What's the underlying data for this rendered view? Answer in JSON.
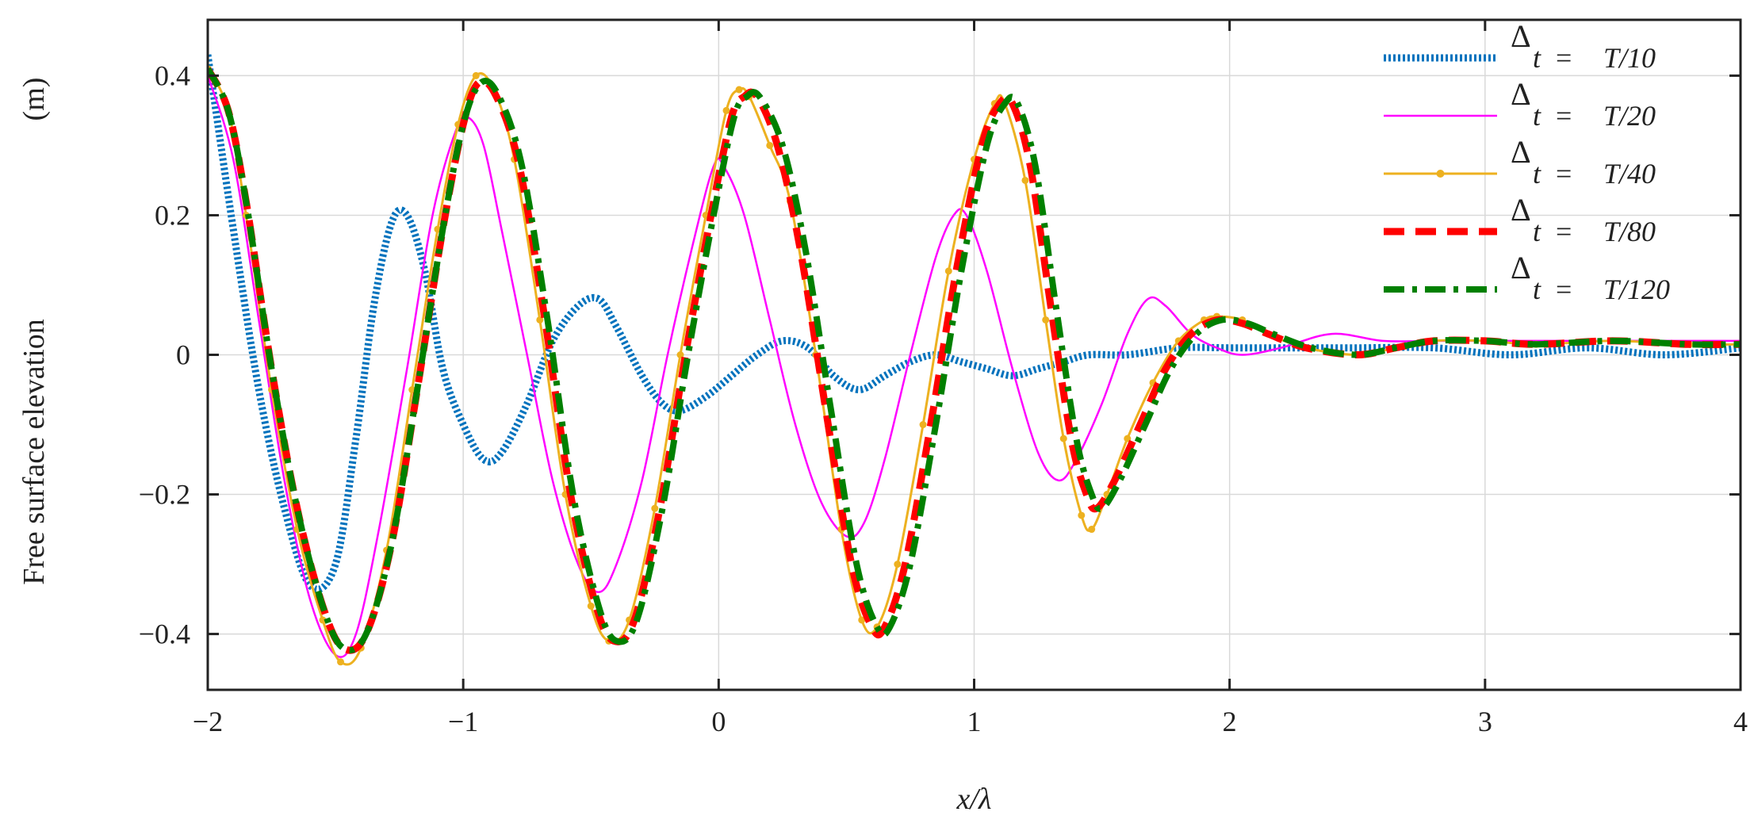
{
  "chart_data": {
    "type": "line",
    "title": "",
    "xlabel": "x/λ",
    "ylabel": "Free surface elevation",
    "ylabel_unit": "(m)",
    "xlim": [
      -2,
      4
    ],
    "ylim": [
      -0.48,
      0.48
    ],
    "x_ticks": [
      -2,
      -1,
      0,
      1,
      2,
      3,
      4
    ],
    "x_tick_labels": [
      "−2",
      "−1",
      "0",
      "1",
      "2",
      "3",
      "4"
    ],
    "y_ticks": [
      -0.4,
      -0.2,
      0,
      0.2,
      0.4
    ],
    "y_tick_labels": [
      "−0.4",
      "−0.2",
      "0",
      "0.2",
      "0.4"
    ],
    "grid": true,
    "legend_position": "top-right",
    "series": [
      {
        "name": "T/10",
        "legend_delta": "Δ",
        "legend_sub": "t",
        "legend_eq": "=",
        "legend_value": "T/10",
        "color": "#0072BD",
        "style": "dotted-thick",
        "points": [
          [
            -2.0,
            0.43
          ],
          [
            -1.9,
            0.18
          ],
          [
            -1.8,
            -0.05
          ],
          [
            -1.7,
            -0.22
          ],
          [
            -1.6,
            -0.33
          ],
          [
            -1.5,
            -0.3
          ],
          [
            -1.42,
            -0.12
          ],
          [
            -1.35,
            0.07
          ],
          [
            -1.28,
            0.19
          ],
          [
            -1.22,
            0.2
          ],
          [
            -1.15,
            0.12
          ],
          [
            -1.08,
            -0.02
          ],
          [
            -1.0,
            -0.1
          ],
          [
            -0.92,
            -0.15
          ],
          [
            -0.85,
            -0.14
          ],
          [
            -0.75,
            -0.07
          ],
          [
            -0.65,
            0.02
          ],
          [
            -0.55,
            0.07
          ],
          [
            -0.47,
            0.08
          ],
          [
            -0.4,
            0.04
          ],
          [
            -0.3,
            -0.03
          ],
          [
            -0.22,
            -0.07
          ],
          [
            -0.15,
            -0.08
          ],
          [
            -0.05,
            -0.06
          ],
          [
            0.05,
            -0.03
          ],
          [
            0.15,
            0.0
          ],
          [
            0.25,
            0.02
          ],
          [
            0.35,
            0.01
          ],
          [
            0.45,
            -0.03
          ],
          [
            0.55,
            -0.05
          ],
          [
            0.65,
            -0.03
          ],
          [
            0.75,
            -0.01
          ],
          [
            0.85,
            0.0
          ],
          [
            0.95,
            -0.01
          ],
          [
            1.05,
            -0.02
          ],
          [
            1.15,
            -0.03
          ],
          [
            1.25,
            -0.02
          ],
          [
            1.35,
            -0.01
          ],
          [
            1.45,
            0.0
          ],
          [
            1.6,
            0.0
          ],
          [
            1.8,
            0.01
          ],
          [
            2.0,
            0.01
          ],
          [
            2.2,
            0.01
          ],
          [
            2.5,
            0.01
          ],
          [
            2.8,
            0.01
          ],
          [
            3.1,
            0.0
          ],
          [
            3.4,
            0.01
          ],
          [
            3.7,
            0.0
          ],
          [
            4.0,
            0.01
          ]
        ]
      },
      {
        "name": "T/20",
        "legend_delta": "Δ",
        "legend_sub": "t",
        "legend_eq": "=",
        "legend_value": "T/20",
        "color": "#FF00FF",
        "style": "solid-thin",
        "points": [
          [
            -2.0,
            0.4
          ],
          [
            -1.9,
            0.28
          ],
          [
            -1.8,
            0.05
          ],
          [
            -1.7,
            -0.18
          ],
          [
            -1.6,
            -0.35
          ],
          [
            -1.5,
            -0.43
          ],
          [
            -1.42,
            -0.4
          ],
          [
            -1.33,
            -0.25
          ],
          [
            -1.22,
            -0.02
          ],
          [
            -1.12,
            0.2
          ],
          [
            -1.03,
            0.32
          ],
          [
            -0.98,
            0.34
          ],
          [
            -0.92,
            0.3
          ],
          [
            -0.85,
            0.18
          ],
          [
            -0.75,
            0.0
          ],
          [
            -0.65,
            -0.18
          ],
          [
            -0.55,
            -0.3
          ],
          [
            -0.47,
            -0.34
          ],
          [
            -0.4,
            -0.3
          ],
          [
            -0.3,
            -0.18
          ],
          [
            -0.2,
            0.0
          ],
          [
            -0.1,
            0.16
          ],
          [
            -0.02,
            0.27
          ],
          [
            0.02,
            0.27
          ],
          [
            0.1,
            0.2
          ],
          [
            0.2,
            0.05
          ],
          [
            0.3,
            -0.1
          ],
          [
            0.4,
            -0.21
          ],
          [
            0.5,
            -0.26
          ],
          [
            0.57,
            -0.24
          ],
          [
            0.65,
            -0.15
          ],
          [
            0.75,
            0.0
          ],
          [
            0.85,
            0.14
          ],
          [
            0.92,
            0.2
          ],
          [
            0.97,
            0.2
          ],
          [
            1.05,
            0.12
          ],
          [
            1.15,
            -0.02
          ],
          [
            1.25,
            -0.14
          ],
          [
            1.33,
            -0.18
          ],
          [
            1.4,
            -0.15
          ],
          [
            1.5,
            -0.07
          ],
          [
            1.6,
            0.03
          ],
          [
            1.68,
            0.08
          ],
          [
            1.75,
            0.07
          ],
          [
            1.85,
            0.03
          ],
          [
            1.95,
            0.01
          ],
          [
            2.05,
            0.0
          ],
          [
            2.2,
            0.01
          ],
          [
            2.4,
            0.03
          ],
          [
            2.6,
            0.02
          ],
          [
            2.8,
            0.02
          ],
          [
            3.0,
            0.02
          ],
          [
            3.3,
            0.02
          ],
          [
            3.6,
            0.02
          ],
          [
            4.0,
            0.02
          ]
        ]
      },
      {
        "name": "T/40",
        "legend_delta": "Δ",
        "legend_sub": "t",
        "legend_eq": "=",
        "legend_value": "T/40",
        "color": "#EDB120",
        "style": "solid-marker",
        "points": [
          [
            -2.0,
            0.41
          ],
          [
            -1.92,
            0.35
          ],
          [
            -1.85,
            0.2
          ],
          [
            -1.75,
            -0.05
          ],
          [
            -1.65,
            -0.25
          ],
          [
            -1.55,
            -0.38
          ],
          [
            -1.48,
            -0.44
          ],
          [
            -1.4,
            -0.42
          ],
          [
            -1.3,
            -0.28
          ],
          [
            -1.2,
            -0.05
          ],
          [
            -1.1,
            0.18
          ],
          [
            -1.02,
            0.33
          ],
          [
            -0.95,
            0.4
          ],
          [
            -0.88,
            0.38
          ],
          [
            -0.8,
            0.28
          ],
          [
            -0.7,
            0.05
          ],
          [
            -0.6,
            -0.2
          ],
          [
            -0.5,
            -0.36
          ],
          [
            -0.43,
            -0.41
          ],
          [
            -0.35,
            -0.38
          ],
          [
            -0.25,
            -0.22
          ],
          [
            -0.15,
            0.0
          ],
          [
            -0.05,
            0.2
          ],
          [
            0.03,
            0.35
          ],
          [
            0.08,
            0.38
          ],
          [
            0.12,
            0.37
          ],
          [
            0.2,
            0.3
          ],
          [
            0.28,
            0.22
          ],
          [
            0.38,
            0.0
          ],
          [
            0.48,
            -0.25
          ],
          [
            0.56,
            -0.38
          ],
          [
            0.62,
            -0.39
          ],
          [
            0.7,
            -0.3
          ],
          [
            0.8,
            -0.1
          ],
          [
            0.9,
            0.12
          ],
          [
            1.0,
            0.28
          ],
          [
            1.08,
            0.36
          ],
          [
            1.12,
            0.36
          ],
          [
            1.2,
            0.25
          ],
          [
            1.28,
            0.05
          ],
          [
            1.35,
            -0.12
          ],
          [
            1.42,
            -0.23
          ],
          [
            1.46,
            -0.25
          ],
          [
            1.52,
            -0.2
          ],
          [
            1.6,
            -0.12
          ],
          [
            1.7,
            -0.04
          ],
          [
            1.8,
            0.02
          ],
          [
            1.9,
            0.05
          ],
          [
            1.95,
            0.055
          ],
          [
            2.05,
            0.05
          ],
          [
            2.15,
            0.03
          ],
          [
            2.3,
            0.01
          ],
          [
            2.5,
            0.0
          ],
          [
            2.65,
            0.01
          ],
          [
            2.8,
            0.02
          ],
          [
            3.0,
            0.02
          ],
          [
            3.2,
            0.015
          ],
          [
            3.5,
            0.02
          ],
          [
            3.8,
            0.015
          ],
          [
            4.0,
            0.015
          ]
        ]
      },
      {
        "name": "T/80",
        "legend_delta": "Δ",
        "legend_sub": "t",
        "legend_eq": "=",
        "legend_value": "T/80",
        "color": "#FF0000",
        "style": "dashed-thick",
        "points": [
          [
            -2.0,
            0.41
          ],
          [
            -1.92,
            0.35
          ],
          [
            -1.85,
            0.22
          ],
          [
            -1.75,
            -0.02
          ],
          [
            -1.65,
            -0.22
          ],
          [
            -1.55,
            -0.36
          ],
          [
            -1.47,
            -0.42
          ],
          [
            -1.38,
            -0.4
          ],
          [
            -1.28,
            -0.27
          ],
          [
            -1.18,
            -0.05
          ],
          [
            -1.08,
            0.18
          ],
          [
            -1.0,
            0.33
          ],
          [
            -0.94,
            0.39
          ],
          [
            -0.87,
            0.37
          ],
          [
            -0.78,
            0.27
          ],
          [
            -0.68,
            0.05
          ],
          [
            -0.58,
            -0.2
          ],
          [
            -0.48,
            -0.36
          ],
          [
            -0.41,
            -0.41
          ],
          [
            -0.33,
            -0.38
          ],
          [
            -0.23,
            -0.22
          ],
          [
            -0.13,
            0.0
          ],
          [
            -0.03,
            0.2
          ],
          [
            0.05,
            0.34
          ],
          [
            0.1,
            0.37
          ],
          [
            0.15,
            0.37
          ],
          [
            0.23,
            0.3
          ],
          [
            0.32,
            0.15
          ],
          [
            0.42,
            -0.08
          ],
          [
            0.52,
            -0.3
          ],
          [
            0.6,
            -0.39
          ],
          [
            0.65,
            -0.39
          ],
          [
            0.73,
            -0.3
          ],
          [
            0.83,
            -0.1
          ],
          [
            0.93,
            0.12
          ],
          [
            1.03,
            0.3
          ],
          [
            1.1,
            0.36
          ],
          [
            1.15,
            0.36
          ],
          [
            1.22,
            0.27
          ],
          [
            1.3,
            0.07
          ],
          [
            1.38,
            -0.12
          ],
          [
            1.44,
            -0.2
          ],
          [
            1.48,
            -0.22
          ],
          [
            1.55,
            -0.18
          ],
          [
            1.65,
            -0.1
          ],
          [
            1.75,
            -0.02
          ],
          [
            1.85,
            0.03
          ],
          [
            1.95,
            0.05
          ],
          [
            2.05,
            0.045
          ],
          [
            2.15,
            0.03
          ],
          [
            2.3,
            0.01
          ],
          [
            2.5,
            0.0
          ],
          [
            2.65,
            0.01
          ],
          [
            2.8,
            0.02
          ],
          [
            3.0,
            0.02
          ],
          [
            3.2,
            0.015
          ],
          [
            3.5,
            0.02
          ],
          [
            3.8,
            0.015
          ],
          [
            4.0,
            0.015
          ]
        ]
      },
      {
        "name": "T/120",
        "legend_delta": "Δ",
        "legend_sub": "t",
        "legend_eq": "=",
        "legend_value": "T/120",
        "color": "#008000",
        "style": "dashdot-thick",
        "points": [
          [
            -2.0,
            0.41
          ],
          [
            -1.92,
            0.35
          ],
          [
            -1.85,
            0.22
          ],
          [
            -1.75,
            -0.02
          ],
          [
            -1.65,
            -0.22
          ],
          [
            -1.55,
            -0.36
          ],
          [
            -1.47,
            -0.42
          ],
          [
            -1.38,
            -0.4
          ],
          [
            -1.28,
            -0.27
          ],
          [
            -1.18,
            -0.05
          ],
          [
            -1.08,
            0.18
          ],
          [
            -1.0,
            0.33
          ],
          [
            -0.93,
            0.39
          ],
          [
            -0.86,
            0.37
          ],
          [
            -0.77,
            0.27
          ],
          [
            -0.67,
            0.05
          ],
          [
            -0.57,
            -0.2
          ],
          [
            -0.47,
            -0.36
          ],
          [
            -0.4,
            -0.41
          ],
          [
            -0.32,
            -0.38
          ],
          [
            -0.22,
            -0.22
          ],
          [
            -0.12,
            0.0
          ],
          [
            -0.02,
            0.2
          ],
          [
            0.06,
            0.34
          ],
          [
            0.11,
            0.37
          ],
          [
            0.16,
            0.37
          ],
          [
            0.25,
            0.3
          ],
          [
            0.34,
            0.15
          ],
          [
            0.44,
            -0.08
          ],
          [
            0.54,
            -0.3
          ],
          [
            0.62,
            -0.39
          ],
          [
            0.67,
            -0.39
          ],
          [
            0.75,
            -0.3
          ],
          [
            0.85,
            -0.1
          ],
          [
            0.95,
            0.12
          ],
          [
            1.05,
            0.3
          ],
          [
            1.12,
            0.36
          ],
          [
            1.17,
            0.36
          ],
          [
            1.24,
            0.27
          ],
          [
            1.32,
            0.07
          ],
          [
            1.4,
            -0.12
          ],
          [
            1.46,
            -0.2
          ],
          [
            1.5,
            -0.22
          ],
          [
            1.57,
            -0.18
          ],
          [
            1.67,
            -0.1
          ],
          [
            1.77,
            -0.02
          ],
          [
            1.87,
            0.03
          ],
          [
            1.97,
            0.05
          ],
          [
            2.07,
            0.045
          ],
          [
            2.17,
            0.03
          ],
          [
            2.32,
            0.01
          ],
          [
            2.5,
            0.0
          ],
          [
            2.65,
            0.01
          ],
          [
            2.8,
            0.02
          ],
          [
            3.0,
            0.02
          ],
          [
            3.2,
            0.015
          ],
          [
            3.5,
            0.02
          ],
          [
            3.8,
            0.015
          ],
          [
            4.0,
            0.015
          ]
        ]
      }
    ]
  }
}
